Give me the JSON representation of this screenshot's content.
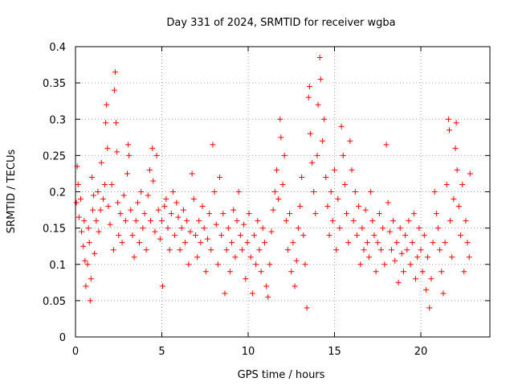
{
  "chart_data": {
    "type": "scatter",
    "title": "Day 331 of 2024, SRMTID for receiver wgba",
    "xlabel": "GPS time / hours",
    "ylabel": "SRMTID / TECUs",
    "xlim": [
      0,
      24
    ],
    "ylim": [
      0,
      0.4
    ],
    "xticks": [
      0,
      5,
      10,
      15,
      20
    ],
    "xtick_labels": [
      "0",
      "5",
      "10",
      "15",
      "20"
    ],
    "yticks": [
      0,
      0.05,
      0.1,
      0.15,
      0.2,
      0.25,
      0.3,
      0.35,
      0.4
    ],
    "ytick_labels": [
      "0",
      "0.05",
      "0.1",
      "0.15",
      "0.2",
      "0.25",
      "0.3",
      "0.35",
      "0.4"
    ],
    "grid": true,
    "marker": "+",
    "color": "#ff0000",
    "series": [
      {
        "name": "SRMTID",
        "points": [
          [
            0.05,
            0.185
          ],
          [
            0.1,
            0.235
          ],
          [
            0.15,
            0.21
          ],
          [
            0.2,
            0.165
          ],
          [
            0.3,
            0.19
          ],
          [
            0.35,
            0.145
          ],
          [
            0.45,
            0.125
          ],
          [
            0.5,
            0.16
          ],
          [
            0.55,
            0.105
          ],
          [
            0.6,
            0.07
          ],
          [
            0.7,
            0.1
          ],
          [
            0.75,
            0.15
          ],
          [
            0.8,
            0.13
          ],
          [
            0.85,
            0.05
          ],
          [
            0.9,
            0.08
          ],
          [
            0.95,
            0.22
          ],
          [
            1.0,
            0.175
          ],
          [
            1.05,
            0.195
          ],
          [
            1.1,
            0.115
          ],
          [
            1.2,
            0.16
          ],
          [
            1.3,
            0.2
          ],
          [
            1.35,
            0.145
          ],
          [
            1.45,
            0.175
          ],
          [
            1.5,
            0.24
          ],
          [
            1.6,
            0.19
          ],
          [
            1.7,
            0.21
          ],
          [
            1.75,
            0.295
          ],
          [
            1.8,
            0.32
          ],
          [
            1.85,
            0.26
          ],
          [
            1.9,
            0.18
          ],
          [
            2.0,
            0.155
          ],
          [
            2.1,
            0.21
          ],
          [
            2.2,
            0.12
          ],
          [
            2.25,
            0.34
          ],
          [
            2.3,
            0.365
          ],
          [
            2.35,
            0.295
          ],
          [
            2.4,
            0.255
          ],
          [
            2.45,
            0.185
          ],
          [
            2.5,
            0.14
          ],
          [
            2.6,
            0.17
          ],
          [
            2.7,
            0.13
          ],
          [
            2.8,
            0.195
          ],
          [
            2.9,
            0.16
          ],
          [
            3.0,
            0.225
          ],
          [
            3.05,
            0.265
          ],
          [
            3.1,
            0.25
          ],
          [
            3.2,
            0.175
          ],
          [
            3.3,
            0.14
          ],
          [
            3.4,
            0.11
          ],
          [
            3.5,
            0.16
          ],
          [
            3.6,
            0.185
          ],
          [
            3.7,
            0.13
          ],
          [
            3.8,
            0.2
          ],
          [
            3.9,
            0.15
          ],
          [
            4.0,
            0.17
          ],
          [
            4.1,
            0.12
          ],
          [
            4.2,
            0.195
          ],
          [
            4.3,
            0.23
          ],
          [
            4.35,
            0.16
          ],
          [
            4.45,
            0.26
          ],
          [
            4.5,
            0.215
          ],
          [
            4.6,
            0.145
          ],
          [
            4.7,
            0.25
          ],
          [
            4.8,
            0.175
          ],
          [
            4.9,
            0.135
          ],
          [
            5.0,
            0.16
          ],
          [
            5.05,
            0.07
          ],
          [
            5.15,
            0.18
          ],
          [
            5.25,
            0.19
          ],
          [
            5.35,
            0.15
          ],
          [
            5.45,
            0.12
          ],
          [
            5.55,
            0.17
          ],
          [
            5.65,
            0.2
          ],
          [
            5.75,
            0.14
          ],
          [
            5.85,
            0.185
          ],
          [
            5.95,
            0.165
          ],
          [
            6.05,
            0.12
          ],
          [
            6.15,
            0.15
          ],
          [
            6.25,
            0.175
          ],
          [
            6.35,
            0.13
          ],
          [
            6.45,
            0.16
          ],
          [
            6.55,
            0.1
          ],
          [
            6.65,
            0.145
          ],
          [
            6.75,
            0.225
          ],
          [
            6.85,
            0.19
          ],
          [
            6.95,
            0.14
          ],
          [
            7.05,
            0.11
          ],
          [
            7.15,
            0.16
          ],
          [
            7.25,
            0.13
          ],
          [
            7.35,
            0.18
          ],
          [
            7.45,
            0.15
          ],
          [
            7.55,
            0.09
          ],
          [
            7.65,
            0.135
          ],
          [
            7.75,
            0.17
          ],
          [
            7.85,
            0.12
          ],
          [
            7.95,
            0.265
          ],
          [
            8.05,
            0.2
          ],
          [
            8.15,
            0.155
          ],
          [
            8.25,
            0.1
          ],
          [
            8.35,
            0.22
          ],
          [
            8.45,
            0.14
          ],
          [
            8.55,
            0.17
          ],
          [
            8.65,
            0.06
          ],
          [
            8.75,
            0.12
          ],
          [
            8.85,
            0.15
          ],
          [
            8.95,
            0.09
          ],
          [
            9.05,
            0.13
          ],
          [
            9.15,
            0.175
          ],
          [
            9.25,
            0.11
          ],
          [
            9.35,
            0.16
          ],
          [
            9.45,
            0.2
          ],
          [
            9.55,
            0.14
          ],
          [
            9.65,
            0.12
          ],
          [
            9.75,
            0.155
          ],
          [
            9.85,
            0.08
          ],
          [
            9.95,
            0.13
          ],
          [
            10.05,
            0.17
          ],
          [
            10.15,
            0.11
          ],
          [
            10.25,
            0.06
          ],
          [
            10.35,
            0.14
          ],
          [
            10.45,
            0.1
          ],
          [
            10.55,
            0.16
          ],
          [
            10.65,
            0.12
          ],
          [
            10.75,
            0.09
          ],
          [
            10.85,
            0.15
          ],
          [
            10.95,
            0.13
          ],
          [
            11.05,
            0.07
          ],
          [
            11.15,
            0.055
          ],
          [
            11.25,
            0.1
          ],
          [
            11.35,
            0.145
          ],
          [
            11.45,
            0.175
          ],
          [
            11.55,
            0.2
          ],
          [
            11.65,
            0.23
          ],
          [
            11.75,
            0.19
          ],
          [
            11.85,
            0.3
          ],
          [
            11.9,
            0.275
          ],
          [
            12.0,
            0.21
          ],
          [
            12.1,
            0.25
          ],
          [
            12.2,
            0.16
          ],
          [
            12.3,
            0.12
          ],
          [
            12.4,
            0.17
          ],
          [
            12.5,
            0.09
          ],
          [
            12.6,
            0.13
          ],
          [
            12.7,
            0.07
          ],
          [
            12.8,
            0.105
          ],
          [
            12.9,
            0.15
          ],
          [
            13.0,
            0.18
          ],
          [
            13.1,
            0.22
          ],
          [
            13.2,
            0.14
          ],
          [
            13.3,
            0.1
          ],
          [
            13.4,
            0.04
          ],
          [
            13.5,
            0.33
          ],
          [
            13.55,
            0.345
          ],
          [
            13.6,
            0.28
          ],
          [
            13.7,
            0.24
          ],
          [
            13.8,
            0.2
          ],
          [
            13.9,
            0.17
          ],
          [
            14.0,
            0.25
          ],
          [
            14.05,
            0.32
          ],
          [
            14.15,
            0.385
          ],
          [
            14.2,
            0.355
          ],
          [
            14.3,
            0.27
          ],
          [
            14.4,
            0.3
          ],
          [
            14.5,
            0.22
          ],
          [
            14.6,
            0.18
          ],
          [
            14.7,
            0.14
          ],
          [
            14.8,
            0.2
          ],
          [
            14.9,
            0.16
          ],
          [
            15.0,
            0.23
          ],
          [
            15.1,
            0.12
          ],
          [
            15.2,
            0.19
          ],
          [
            15.3,
            0.15
          ],
          [
            15.4,
            0.29
          ],
          [
            15.5,
            0.25
          ],
          [
            15.6,
            0.21
          ],
          [
            15.7,
            0.17
          ],
          [
            15.8,
            0.13
          ],
          [
            15.9,
            0.27
          ],
          [
            16.0,
            0.23
          ],
          [
            16.1,
            0.16
          ],
          [
            16.2,
            0.2
          ],
          [
            16.3,
            0.14
          ],
          [
            16.4,
            0.18
          ],
          [
            16.5,
            0.1
          ],
          [
            16.6,
            0.15
          ],
          [
            16.7,
            0.12
          ],
          [
            16.8,
            0.175
          ],
          [
            16.9,
            0.13
          ],
          [
            17.0,
            0.11
          ],
          [
            17.1,
            0.2
          ],
          [
            17.2,
            0.16
          ],
          [
            17.3,
            0.14
          ],
          [
            17.4,
            0.09
          ],
          [
            17.5,
            0.13
          ],
          [
            17.6,
            0.17
          ],
          [
            17.7,
            0.12
          ],
          [
            17.8,
            0.15
          ],
          [
            17.9,
            0.1
          ],
          [
            18.0,
            0.265
          ],
          [
            18.1,
            0.185
          ],
          [
            18.2,
            0.145
          ],
          [
            18.3,
            0.12
          ],
          [
            18.4,
            0.16
          ],
          [
            18.5,
            0.105
          ],
          [
            18.6,
            0.13
          ],
          [
            18.7,
            0.075
          ],
          [
            18.8,
            0.15
          ],
          [
            18.9,
            0.115
          ],
          [
            19.0,
            0.09
          ],
          [
            19.1,
            0.14
          ],
          [
            19.2,
            0.12
          ],
          [
            19.3,
            0.16
          ],
          [
            19.4,
            0.1
          ],
          [
            19.5,
            0.13
          ],
          [
            19.6,
            0.17
          ],
          [
            19.7,
            0.08
          ],
          [
            19.8,
            0.11
          ],
          [
            19.9,
            0.15
          ],
          [
            20.0,
            0.12
          ],
          [
            20.1,
            0.09
          ],
          [
            20.2,
            0.14
          ],
          [
            20.3,
            0.065
          ],
          [
            20.4,
            0.11
          ],
          [
            20.5,
            0.04
          ],
          [
            20.6,
            0.08
          ],
          [
            20.7,
            0.13
          ],
          [
            20.8,
            0.2
          ],
          [
            20.9,
            0.17
          ],
          [
            21.0,
            0.15
          ],
          [
            21.1,
            0.12
          ],
          [
            21.2,
            0.09
          ],
          [
            21.3,
            0.06
          ],
          [
            21.4,
            0.13
          ],
          [
            21.5,
            0.21
          ],
          [
            21.6,
            0.3
          ],
          [
            21.65,
            0.285
          ],
          [
            21.7,
            0.16
          ],
          [
            21.8,
            0.11
          ],
          [
            21.9,
            0.19
          ],
          [
            22.0,
            0.26
          ],
          [
            22.05,
            0.295
          ],
          [
            22.1,
            0.23
          ],
          [
            22.2,
            0.18
          ],
          [
            22.3,
            0.14
          ],
          [
            22.4,
            0.21
          ],
          [
            22.5,
            0.09
          ],
          [
            22.6,
            0.16
          ],
          [
            22.7,
            0.13
          ],
          [
            22.8,
            0.11
          ],
          [
            22.85,
            0.225
          ]
        ]
      }
    ]
  }
}
